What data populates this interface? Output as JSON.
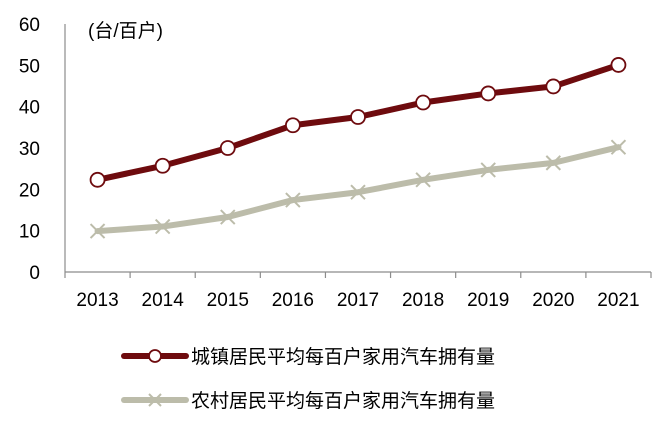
{
  "chart_data": {
    "type": "line",
    "title": "",
    "unit_label": "(台/百户)",
    "xlabel": "",
    "ylabel": "(台/百户)",
    "ylim": [
      0,
      60
    ],
    "yticks": [
      0,
      10,
      20,
      30,
      40,
      50,
      60
    ],
    "grid": false,
    "legend_position": "bottom",
    "categories": [
      "2013",
      "2014",
      "2015",
      "2016",
      "2017",
      "2018",
      "2019",
      "2020",
      "2021"
    ],
    "series": [
      {
        "name": "城镇居民平均每百户家用汽车拥有量",
        "color": "#6e0b0e",
        "marker": "open-circle",
        "values": [
          22.3,
          25.7,
          30.0,
          35.5,
          37.5,
          41.0,
          43.2,
          44.9,
          50.1
        ]
      },
      {
        "name": "农村居民平均每百户家用汽车拥有量",
        "color": "#bcbcaa",
        "marker": "x",
        "values": [
          9.9,
          11.0,
          13.3,
          17.4,
          19.3,
          22.3,
          24.7,
          26.4,
          30.2
        ]
      }
    ]
  }
}
